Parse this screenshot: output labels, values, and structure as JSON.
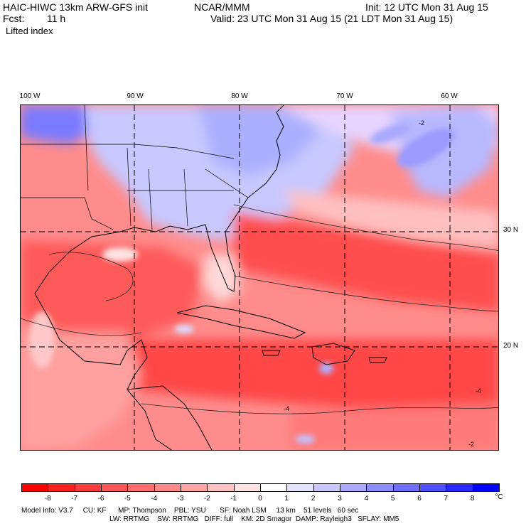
{
  "header": {
    "model_line": "HAIC-HIWC 13km ARW-GFS init",
    "org": "NCAR/MMM",
    "init": "Init: 12 UTC Mon 31 Aug 15",
    "fcst_label": "Fcst:",
    "fcst_value": "11 h",
    "valid": "Valid: 23 UTC Mon 31 Aug 15 (21 LDT Mon 31 Aug 15)",
    "field": "Lifted index"
  },
  "map": {
    "lon_labels": [
      "100 W",
      "90 W",
      "80 W",
      "70 W",
      "60 W"
    ],
    "lat_labels": [
      "30 N",
      "20 N"
    ],
    "contour_labels": [
      "-2",
      "-4"
    ]
  },
  "colorbar": {
    "labels": [
      "-8",
      "-7",
      "-6",
      "-5",
      "-4",
      "-3",
      "-2",
      "-1",
      "0",
      "1",
      "2",
      "3",
      "4",
      "5",
      "6",
      "7",
      "8"
    ],
    "unit": "°C",
    "colors": [
      "#ff0000",
      "#ff2020",
      "#ff3c3c",
      "#ff5555",
      "#ff6e6e",
      "#ff8888",
      "#ffa4a4",
      "#ffc2c2",
      "#ffe2e2",
      "#ffffff",
      "#e4e4ff",
      "#c8c8ff",
      "#aaaaff",
      "#8c8cff",
      "#6e6eff",
      "#5050ff",
      "#2828ff",
      "#0000ff"
    ]
  },
  "footer": {
    "line1": "Model Info: V3.7     CU: KF      MP: Thompson    PBL: YSU       SF: Noah LSM     13 km    51 levels   60 sec",
    "line2": "LW: RRTMG    SW: RRTMG   DIFF: full    KM: 2D Smagor  DAMP: Rayleigh3   SFLAY: MM5"
  }
}
